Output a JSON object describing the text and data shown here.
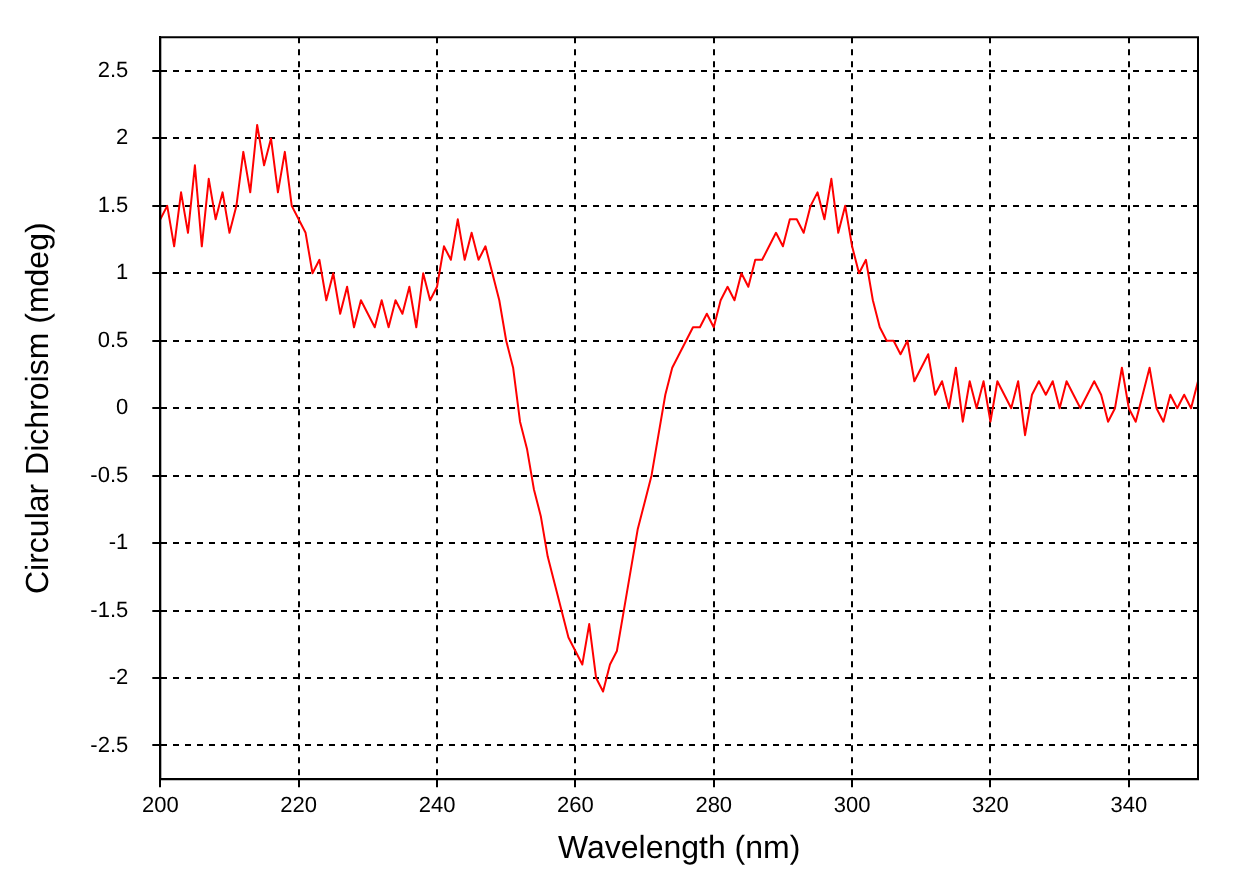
{
  "chart_data": {
    "type": "line",
    "xlabel": "Wavelength (nm)",
    "ylabel": "Circular Dichroism (mdeg)",
    "xlim": [
      200,
      350
    ],
    "xticks": [
      200,
      220,
      240,
      260,
      280,
      300,
      320,
      340
    ],
    "ylim": [
      -2.75,
      2.75
    ],
    "yticks": [
      -2.5,
      -2,
      -1.5,
      -1,
      -0.5,
      0,
      0.5,
      1,
      1.5,
      2,
      2.5
    ],
    "grid": true,
    "legend": false,
    "marker": "none",
    "line_style": "solid",
    "x": [
      200,
      201,
      202,
      203,
      204,
      205,
      206,
      207,
      208,
      209,
      210,
      211,
      212,
      213,
      214,
      215,
      216,
      217,
      218,
      219,
      220,
      221,
      222,
      223,
      224,
      225,
      226,
      227,
      228,
      229,
      230,
      231,
      232,
      233,
      234,
      235,
      236,
      237,
      238,
      239,
      240,
      241,
      242,
      243,
      244,
      245,
      246,
      247,
      248,
      249,
      250,
      251,
      252,
      253,
      254,
      255,
      256,
      257,
      258,
      259,
      260,
      261,
      262,
      263,
      264,
      265,
      266,
      267,
      268,
      269,
      270,
      271,
      272,
      273,
      274,
      275,
      276,
      277,
      278,
      279,
      280,
      281,
      282,
      283,
      284,
      285,
      286,
      287,
      288,
      289,
      290,
      291,
      292,
      293,
      294,
      295,
      296,
      297,
      298,
      299,
      300,
      301,
      302,
      303,
      304,
      305,
      306,
      307,
      308,
      309,
      310,
      311,
      312,
      313,
      314,
      315,
      316,
      317,
      318,
      319,
      320,
      321,
      322,
      323,
      324,
      325,
      326,
      327,
      328,
      329,
      330,
      331,
      332,
      333,
      334,
      335,
      336,
      337,
      338,
      339,
      340,
      341,
      342,
      343,
      344,
      345,
      346,
      347,
      348,
      349,
      350
    ],
    "series": [
      {
        "color": "#ff0000",
        "values": [
          1.4,
          1.5,
          1.2,
          1.6,
          1.3,
          1.8,
          1.2,
          1.7,
          1.4,
          1.6,
          1.3,
          1.5,
          1.9,
          1.6,
          2.1,
          1.8,
          2.0,
          1.6,
          1.9,
          1.5,
          1.4,
          1.3,
          1.0,
          1.1,
          0.8,
          1.0,
          0.7,
          0.9,
          0.6,
          0.8,
          0.7,
          0.6,
          0.8,
          0.6,
          0.8,
          0.7,
          0.9,
          0.6,
          1.0,
          0.8,
          0.9,
          1.2,
          1.1,
          1.4,
          1.1,
          1.3,
          1.1,
          1.2,
          1.0,
          0.8,
          0.5,
          0.3,
          -0.1,
          -0.3,
          -0.6,
          -0.8,
          -1.1,
          -1.3,
          -1.5,
          -1.7,
          -1.8,
          -1.9,
          -1.6,
          -2.0,
          -2.1,
          -1.9,
          -1.8,
          -1.5,
          -1.2,
          -0.9,
          -0.7,
          -0.5,
          -0.2,
          0.1,
          0.3,
          0.4,
          0.5,
          0.6,
          0.6,
          0.7,
          0.6,
          0.8,
          0.9,
          0.8,
          1.0,
          0.9,
          1.1,
          1.1,
          1.2,
          1.3,
          1.2,
          1.4,
          1.4,
          1.3,
          1.5,
          1.6,
          1.4,
          1.7,
          1.3,
          1.5,
          1.2,
          1.0,
          1.1,
          0.8,
          0.6,
          0.5,
          0.5,
          0.4,
          0.5,
          0.2,
          0.3,
          0.4,
          0.1,
          0.2,
          0.0,
          0.3,
          -0.1,
          0.2,
          0.0,
          0.2,
          -0.1,
          0.2,
          0.1,
          0.0,
          0.2,
          -0.2,
          0.1,
          0.2,
          0.1,
          0.2,
          0.0,
          0.2,
          0.1,
          0.0,
          0.1,
          0.2,
          0.1,
          -0.1,
          0.0,
          0.3,
          0.0,
          -0.1,
          0.1,
          0.3,
          0.0,
          -0.1,
          0.1,
          0.0,
          0.1,
          0.0,
          0.2
        ]
      }
    ]
  }
}
